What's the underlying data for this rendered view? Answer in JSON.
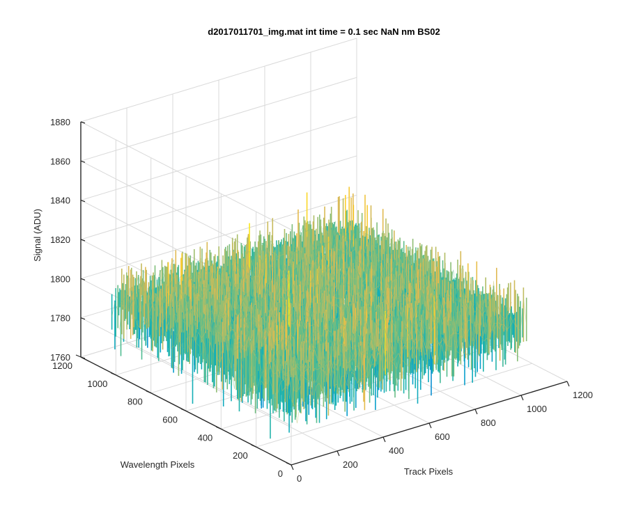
{
  "chart_data": {
    "type": "surface",
    "title": "d2017011701_img.mat int time = 0.1 sec  NaN nm BS02",
    "xlabel": "Track Pixels",
    "ylabel": "Wavelength Pixels",
    "zlabel": "Signal (ADU)",
    "xlim": [
      0,
      1200
    ],
    "ylim": [
      0,
      1200
    ],
    "zlim": [
      1760,
      1880
    ],
    "x_ticks": [
      0,
      200,
      400,
      600,
      800,
      1000,
      1200
    ],
    "y_ticks": [
      0,
      200,
      400,
      600,
      800,
      1000,
      1200
    ],
    "z_ticks": [
      1760,
      1780,
      1800,
      1820,
      1840,
      1860,
      1880
    ],
    "x_tick_labels": [
      "0",
      "200",
      "400",
      "600",
      "800",
      "1000",
      "1200"
    ],
    "y_tick_labels": [
      "0",
      "200",
      "400",
      "600",
      "800",
      "1000",
      "1200"
    ],
    "z_tick_labels": [
      "1760",
      "1780",
      "1800",
      "1820",
      "1840",
      "1860",
      "1880"
    ],
    "data_extent": {
      "x": [
        1,
        1024
      ],
      "y": [
        1,
        1024
      ]
    },
    "signal_mean": 1795,
    "signal_range": [
      1765,
      1850
    ],
    "colormap": "parula",
    "grid": true,
    "box": false,
    "view": "3d"
  }
}
